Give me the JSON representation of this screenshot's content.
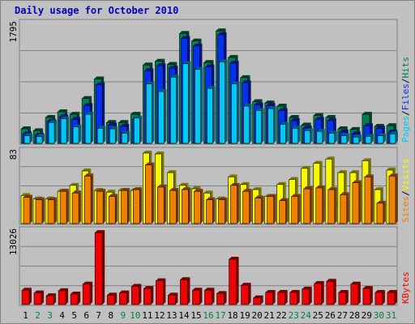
{
  "title": "Daily usage for October 2010",
  "colors": {
    "pages_front": "#00c8f0",
    "pages_side": "#006080",
    "files_front": "#0030f0",
    "files_side": "#001878",
    "hits_front": "#00804f",
    "hits_side": "#004028",
    "visits_front": "#f8f800",
    "visits_side": "#787800",
    "sites_front": "#f08000",
    "sites_side": "#784000",
    "kbytes_front": "#f00000",
    "kbytes_side": "#780000",
    "day_label_weekday": "#000000",
    "day_label_weekend": "#008040",
    "background": "#c0c0c0",
    "title": "#0000c0"
  },
  "chart_data": [
    {
      "type": "bar",
      "y_axis_max_label": "1795",
      "ylim": [
        0,
        1795
      ],
      "grid": true,
      "legend": [
        "Pages",
        "Files",
        "Hits"
      ],
      "legend_separator": "/",
      "categories": [
        "1",
        "2",
        "3",
        "4",
        "5",
        "6",
        "7",
        "8",
        "9",
        "10",
        "11",
        "12",
        "13",
        "14",
        "15",
        "16",
        "17",
        "18",
        "19",
        "20",
        "21",
        "22",
        "23",
        "24",
        "25",
        "26",
        "27",
        "28",
        "29",
        "30",
        "31"
      ],
      "series": [
        {
          "name": "Hits",
          "values": [
            230,
            200,
            410,
            500,
            460,
            710,
            1020,
            330,
            330,
            460,
            1240,
            1300,
            1250,
            1740,
            1620,
            1280,
            1780,
            1360,
            1040,
            660,
            640,
            590,
            410,
            290,
            440,
            410,
            230,
            220,
            460,
            270,
            280
          ]
        },
        {
          "name": "Files",
          "values": [
            150,
            130,
            350,
            420,
            380,
            600,
            930,
            290,
            270,
            380,
            1150,
            1230,
            1190,
            1660,
            1540,
            1210,
            1720,
            1270,
            960,
            610,
            600,
            520,
            360,
            240,
            380,
            360,
            180,
            150,
            280,
            240,
            180
          ]
        },
        {
          "name": "Pages",
          "values": [
            120,
            110,
            330,
            390,
            260,
            460,
            240,
            230,
            160,
            400,
            940,
            820,
            1050,
            1260,
            1170,
            870,
            1290,
            940,
            590,
            520,
            550,
            300,
            240,
            200,
            190,
            160,
            120,
            100,
            110,
            120,
            150
          ]
        }
      ]
    },
    {
      "type": "bar",
      "y_axis_max_label": "83",
      "ylim": [
        0,
        83
      ],
      "grid": true,
      "legend": [
        "Sites",
        "Visits"
      ],
      "legend_separator": "/",
      "categories": [
        "1",
        "2",
        "3",
        "4",
        "5",
        "6",
        "7",
        "8",
        "9",
        "10",
        "11",
        "12",
        "13",
        "14",
        "15",
        "16",
        "17",
        "18",
        "19",
        "20",
        "21",
        "22",
        "23",
        "24",
        "25",
        "26",
        "27",
        "28",
        "29",
        "30",
        "31"
      ],
      "series": [
        {
          "name": "Visits",
          "values": [
            33,
            29,
            29,
            38,
            45,
            62,
            39,
            37,
            39,
            39,
            83,
            82,
            60,
            45,
            41,
            36,
            29,
            55,
            46,
            40,
            32,
            46,
            52,
            65,
            71,
            76,
            60,
            60,
            74,
            40,
            63
          ]
        },
        {
          "name": "Sites",
          "values": [
            31,
            28,
            28,
            38,
            36,
            56,
            38,
            32,
            39,
            40,
            69,
            43,
            39,
            40,
            38,
            28,
            28,
            45,
            38,
            30,
            32,
            27,
            32,
            41,
            42,
            40,
            34,
            48,
            55,
            24,
            56
          ]
        }
      ]
    },
    {
      "type": "bar",
      "y_axis_max_label": "13026",
      "ylim": [
        0,
        13026
      ],
      "grid": true,
      "legend": [
        "KBytes"
      ],
      "categories": [
        "1",
        "2",
        "3",
        "4",
        "5",
        "6",
        "7",
        "8",
        "9",
        "10",
        "11",
        "12",
        "13",
        "14",
        "15",
        "16",
        "17",
        "18",
        "19",
        "20",
        "21",
        "22",
        "23",
        "24",
        "25",
        "26",
        "27",
        "28",
        "29",
        "30",
        "31"
      ],
      "series": [
        {
          "name": "KBytes",
          "values": [
            2600,
            2100,
            1600,
            2500,
            1900,
            3700,
            13000,
            1700,
            2100,
            3300,
            2900,
            4300,
            1700,
            4500,
            2600,
            2600,
            2000,
            8200,
            3500,
            1200,
            2200,
            2200,
            2200,
            2800,
            3800,
            4200,
            2200,
            3700,
            2900,
            2200,
            2200
          ]
        }
      ]
    }
  ],
  "x_axis": {
    "day_labels": [
      "1",
      "2",
      "3",
      "4",
      "5",
      "6",
      "7",
      "8",
      "9",
      "10",
      "11",
      "12",
      "13",
      "14",
      "15",
      "16",
      "17",
      "18",
      "19",
      "20",
      "21",
      "22",
      "23",
      "24",
      "25",
      "26",
      "27",
      "28",
      "29",
      "30",
      "31"
    ],
    "weekend_days": [
      2,
      3,
      9,
      10,
      16,
      17,
      23,
      24,
      30,
      31
    ]
  }
}
